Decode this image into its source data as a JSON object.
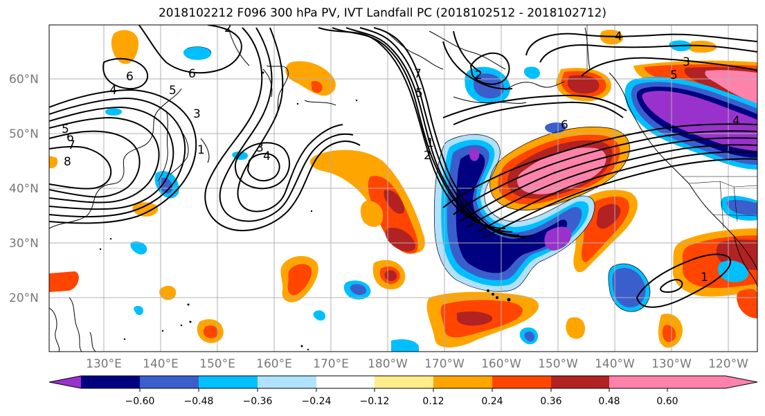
{
  "title": "2018102212 F096 300 hPa PV, IVT Landfall PC (2018102512 - 2018102712)",
  "lat_labels": [
    "60°N",
    "50°N",
    "40°N",
    "30°N",
    "20°N"
  ],
  "lon_labels": [
    "130°E",
    "140°E",
    "150°E",
    "160°E",
    "170°E",
    "180°W",
    "170°W",
    "160°W",
    "150°W",
    "140°W",
    "130°W",
    "120°W"
  ],
  "colorbar": {
    "colors": [
      "#9932cc",
      "#000080",
      "#3a5fcd",
      "#00bfff",
      "#b0e2ff",
      "#ffffff",
      "#ffec8b",
      "#ffa500",
      "#ff4500",
      "#b22222",
      "#ff82ab"
    ],
    "tick_labels": [
      "−0.60",
      "−0.48",
      "−0.36",
      "−0.24",
      "−0.12",
      "0.12",
      "0.24",
      "0.36",
      "0.48",
      "0.60"
    ]
  },
  "contour_labels": [
    "2",
    "6",
    "5",
    "4",
    "3",
    "1",
    "5",
    "6",
    "7",
    "8",
    "3",
    "4",
    "6",
    "5",
    "7",
    "2",
    "1",
    "6",
    "4",
    "3",
    "5",
    "4",
    "2",
    "1"
  ]
}
